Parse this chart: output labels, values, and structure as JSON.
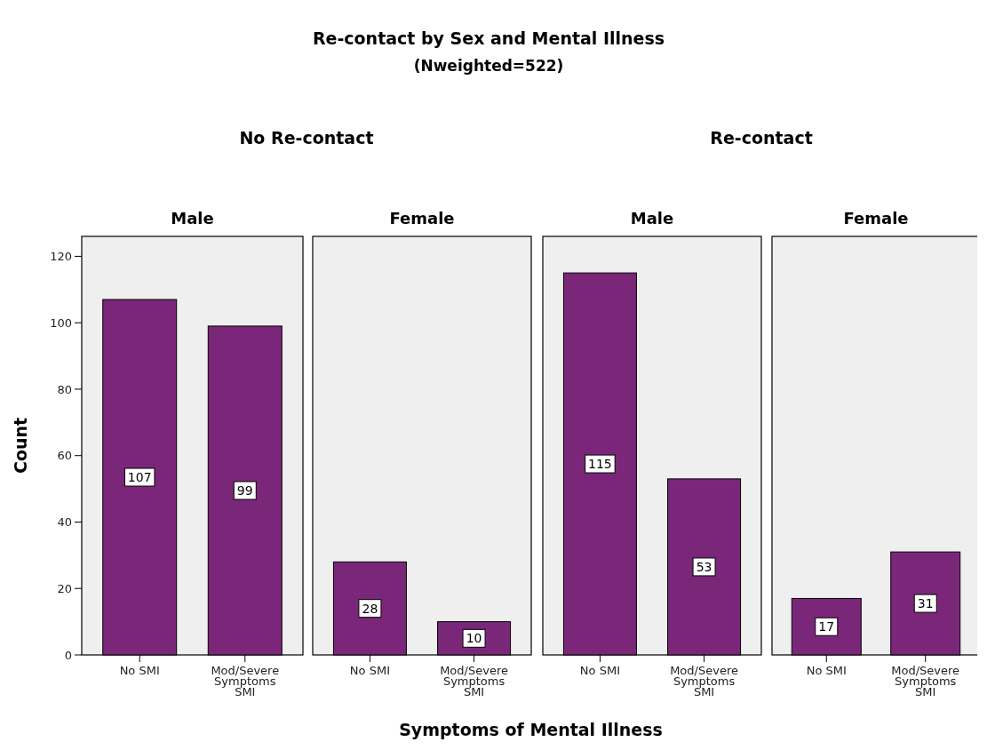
{
  "chart_data": [
    {
      "type": "other",
      "title": "Re-contact by Sex and Mental Illness",
      "subtitle": "(Nweighted=522)",
      "xlabel": "Symptoms of Mental Illness",
      "annotations": [
        "No Re-contact",
        "Re-contact"
      ]
    },
    {
      "type": "bar",
      "title": "Male",
      "ylabel": "Count",
      "categories": [
        "No SMI",
        "Mod/Severe Symptoms SMI"
      ],
      "values": [
        107,
        99
      ],
      "color": "#7b2779",
      "ylim": [
        0,
        126
      ],
      "yticks": [
        0,
        20,
        40,
        60,
        80,
        100,
        120
      ],
      "data_labels": true
    },
    {
      "type": "bar",
      "title": "Female",
      "categories": [
        "No SMI",
        "Mod/Severe Symptoms SMI"
      ],
      "values": [
        28,
        10
      ],
      "color": "#7b2779",
      "ylim": [
        0,
        126
      ],
      "yticks": [
        0,
        20,
        40,
        60,
        80,
        100,
        120
      ],
      "data_labels": true,
      "tick_labels": "x"
    },
    {
      "type": "bar",
      "title": "Male",
      "categories": [
        "No SMI",
        "Mod/Severe Symptoms SMI"
      ],
      "values": [
        115,
        53
      ],
      "color": "#7b2779",
      "ylim": [
        0,
        126
      ],
      "yticks": [
        0,
        20,
        40,
        60,
        80,
        100,
        120
      ],
      "data_labels": true,
      "tick_labels": "x"
    },
    {
      "type": "bar",
      "title": "Female",
      "categories": [
        "No SMI",
        "Mod/Severe Symptoms SMI"
      ],
      "values": [
        17,
        31
      ],
      "color": "#7b2779",
      "ylim": [
        0,
        126
      ],
      "yticks": [
        0,
        20,
        40,
        60,
        80,
        100,
        120
      ],
      "data_labels": true,
      "tick_labels": "x"
    }
  ]
}
